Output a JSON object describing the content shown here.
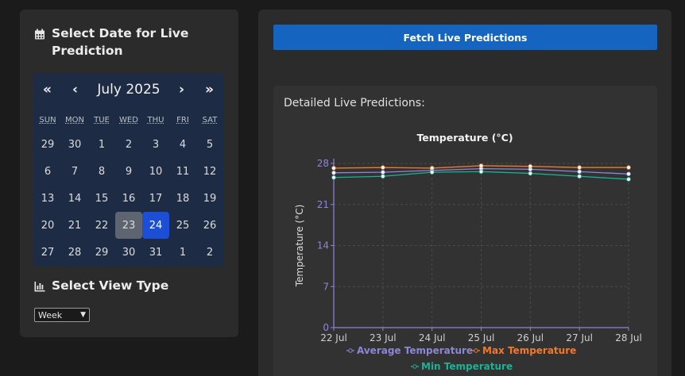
{
  "sidebar": {
    "date_title": "Select Date for Live Prediction",
    "view_title": "Select View Type",
    "view_select_value": "Week"
  },
  "calendar": {
    "month_label": "July 2025",
    "prev_year": "«",
    "prev_month": "‹",
    "next_month": "›",
    "next_year": "»",
    "weekdays": [
      "SUN",
      "MON",
      "TUE",
      "WED",
      "THU",
      "FRI",
      "SAT"
    ],
    "weeks": [
      [
        "29",
        "30",
        "1",
        "2",
        "3",
        "4",
        "5"
      ],
      [
        "6",
        "7",
        "8",
        "9",
        "10",
        "11",
        "12"
      ],
      [
        "13",
        "14",
        "15",
        "16",
        "17",
        "18",
        "19"
      ],
      [
        "20",
        "21",
        "22",
        "23",
        "24",
        "25",
        "26"
      ],
      [
        "27",
        "28",
        "29",
        "30",
        "31",
        "1",
        "2"
      ]
    ],
    "today_day": "23",
    "selected_day": "24"
  },
  "main": {
    "fetch_label": "Fetch Live Predictions",
    "predictions_label": "Detailed Live Predictions:"
  },
  "chart_data": {
    "type": "line",
    "title": "Temperature (°C)",
    "xlabel": "",
    "ylabel": "Temperature (°C)",
    "categories": [
      "22 Jul",
      "23 Jul",
      "24 Jul",
      "25 Jul",
      "26 Jul",
      "27 Jul",
      "28 Jul"
    ],
    "yticks": [
      0,
      7,
      14,
      21,
      28
    ],
    "ylim": [
      0,
      28
    ],
    "grid": true,
    "legend_position": "bottom",
    "series": [
      {
        "name": "Average Temperature",
        "color": "#8c86d6",
        "values": [
          26.4,
          26.5,
          26.8,
          27.1,
          27.0,
          26.6,
          26.2
        ]
      },
      {
        "name": "Max Temperature",
        "color": "#f07a2a",
        "values": [
          27.2,
          27.3,
          27.2,
          27.6,
          27.5,
          27.3,
          27.3
        ]
      },
      {
        "name": "Min Temperature",
        "color": "#18b394",
        "values": [
          25.6,
          25.8,
          26.5,
          26.6,
          26.3,
          25.8,
          25.3
        ]
      }
    ]
  }
}
